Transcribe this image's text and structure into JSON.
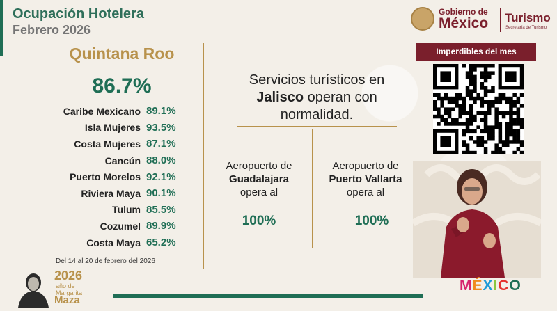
{
  "header": {
    "title": "Ocupación Hotelera",
    "subtitle": "Febrero 2026"
  },
  "state": {
    "name": "Quintana Roo",
    "total": "86.7%"
  },
  "destinations": [
    {
      "name": "Caribe Mexicano",
      "value": "89.1%"
    },
    {
      "name": "Isla Mujeres",
      "value": "93.5%"
    },
    {
      "name": "Costa Mujeres",
      "value": "87.1%"
    },
    {
      "name": "Cancún",
      "value": "88.0%"
    },
    {
      "name": "Puerto Morelos",
      "value": "92.1%"
    },
    {
      "name": "Riviera Maya",
      "value": "90.1%"
    },
    {
      "name": "Tulum",
      "value": "85.5%"
    },
    {
      "name": "Cozumel",
      "value": "89.9%"
    },
    {
      "name": "Costa Maya",
      "value": "65.2%"
    }
  ],
  "period": "Del 14 al 20 de febrero del 2026",
  "main": {
    "line1": "Servicios turísticos en",
    "highlight": "Jalisco",
    "line2_rest": " operan con",
    "line3": "normalidad."
  },
  "airports": [
    {
      "prefix": "Aeropuerto de",
      "name": "Guadalajara",
      "suffix": "opera al",
      "value": "100%"
    },
    {
      "prefix": "Aeropuerto de",
      "name": "Puerto Vallarta",
      "suffix": "opera al",
      "value": "100%"
    }
  ],
  "branding": {
    "gob_line1": "Gobierno de",
    "gob_line2": "México",
    "turismo": "Turismo",
    "turismo_sub": "Secretaría de Turismo",
    "mexico": "MÉXICO",
    "year": "2026",
    "year_text_1": "año de",
    "year_text_2": "Margarita",
    "year_name": "Maza"
  },
  "imperdibles": "Imperdibles del mes",
  "colors": {
    "green": "#1f6e55",
    "gold": "#b8924c",
    "guinda": "#7a1f2c"
  }
}
